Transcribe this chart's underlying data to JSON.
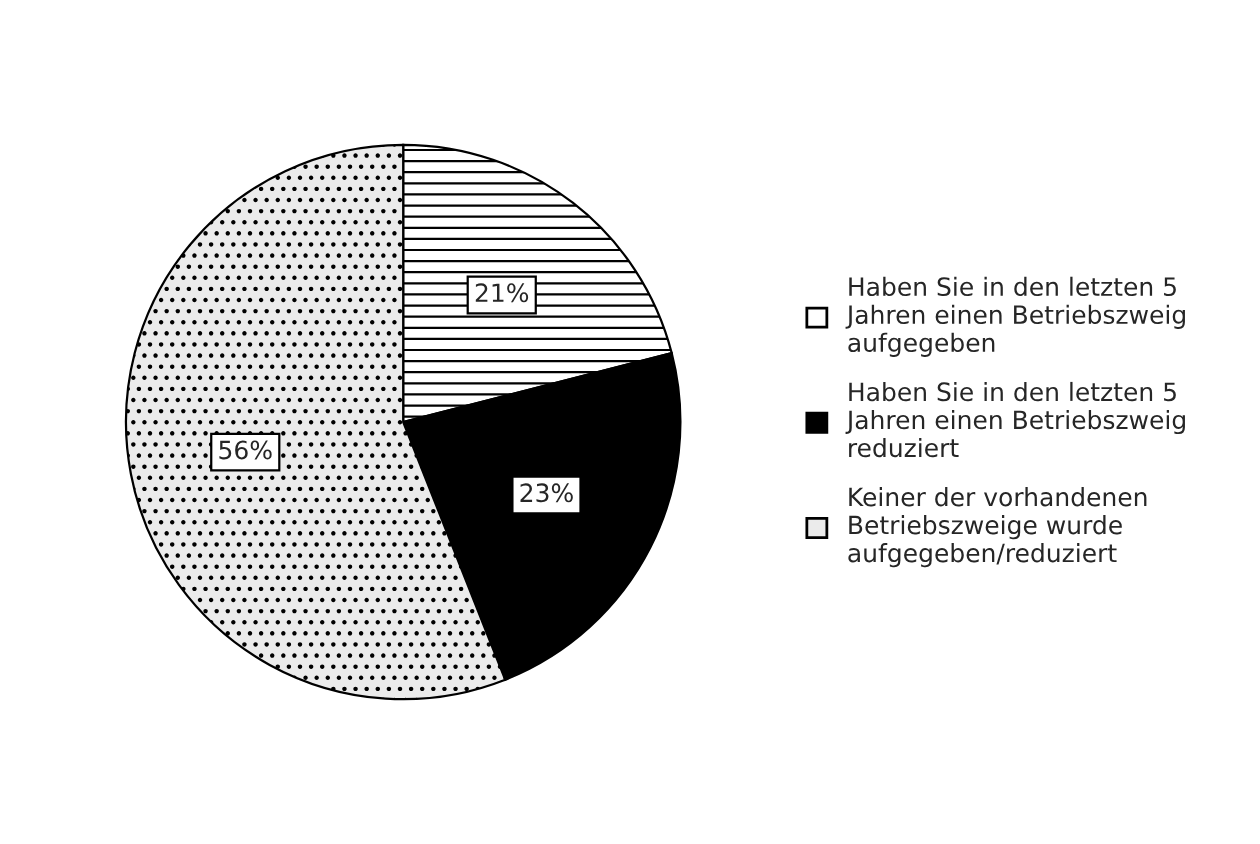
{
  "chart_data": {
    "type": "pie",
    "categories": [
      "Haben Sie in den letzten 5 Jahren einen Betriebszweig aufgegeben",
      "Haben Sie in den letzten 5 Jahren einen Betriebszweig reduziert",
      "Keiner der vorhandenen Betriebszweige wurde aufgegeben/reduziert"
    ],
    "values": [
      21,
      23,
      56
    ],
    "colors": [
      "#ffffff",
      "#000000",
      "#ebebeb"
    ],
    "value_labels": [
      "21%",
      "23%",
      "56%"
    ],
    "legend": "right"
  }
}
